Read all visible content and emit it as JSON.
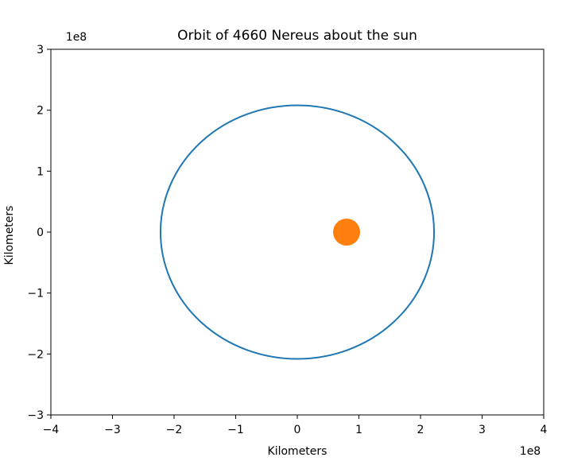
{
  "chart_data": {
    "type": "line",
    "title": "Orbit of 4660 Nereus about the sun",
    "xlabel": "Kilometers",
    "ylabel": "Kilometers",
    "x_offset_label": "1e8",
    "y_offset_label": "1e8",
    "xlim": [
      -4,
      4
    ],
    "ylim": [
      -3,
      3
    ],
    "x_ticks": [
      -4,
      -3,
      -2,
      -1,
      0,
      1,
      2,
      3,
      4
    ],
    "y_ticks": [
      -3,
      -2,
      -1,
      0,
      1,
      2,
      3
    ],
    "x_tick_labels": [
      "−4",
      "−3",
      "−2",
      "−1",
      "0",
      "1",
      "2",
      "3",
      "4"
    ],
    "y_tick_labels": [
      "−3",
      "−2",
      "−1",
      "0",
      "1",
      "2",
      "3"
    ],
    "grid": false,
    "series": [
      {
        "kind": "ellipse",
        "center": [
          0,
          0
        ],
        "semi_major_x": 2.22,
        "semi_minor_y": 2.08,
        "color": "#1f77b4"
      },
      {
        "kind": "point",
        "x": 0.8,
        "y": 0,
        "color": "#ff7f0e"
      }
    ]
  }
}
